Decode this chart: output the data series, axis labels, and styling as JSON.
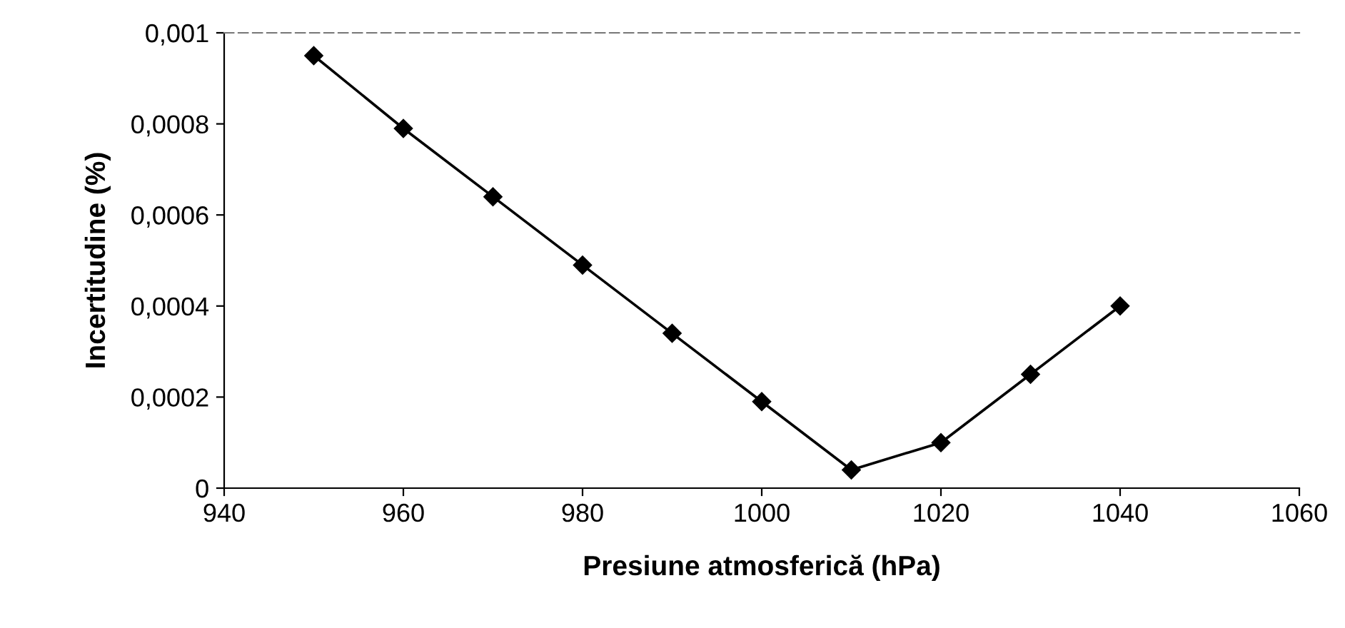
{
  "chart_data": {
    "type": "line",
    "xlabel": "Presiune atmosferică (hPa)",
    "ylabel": "Incertitudine (%)",
    "x": [
      950,
      960,
      970,
      980,
      990,
      1000,
      1010,
      1020,
      1030,
      1040
    ],
    "series": [
      {
        "color": "#000000",
        "values": [
          0.00095,
          0.00079,
          0.00064,
          0.00049,
          0.00034,
          0.00019,
          4e-05,
          0.0001,
          0.00025,
          0.0004
        ]
      }
    ],
    "marker": "diamond",
    "line_style": "solid",
    "xlim": [
      940,
      1060
    ],
    "xticks": [
      940,
      960,
      980,
      1000,
      1020,
      1040,
      1060
    ],
    "ylim": [
      0,
      0.001
    ],
    "yticks": [
      {
        "value": 0,
        "label": "0"
      },
      {
        "value": 0.0002,
        "label": "0,0002"
      },
      {
        "value": 0.0004,
        "label": "0,0004"
      },
      {
        "value": 0.0006,
        "label": "0,0006"
      },
      {
        "value": 0.0008,
        "label": "0,0008"
      },
      {
        "value": 0.001,
        "label": "0,001"
      }
    ],
    "grid": false
  }
}
